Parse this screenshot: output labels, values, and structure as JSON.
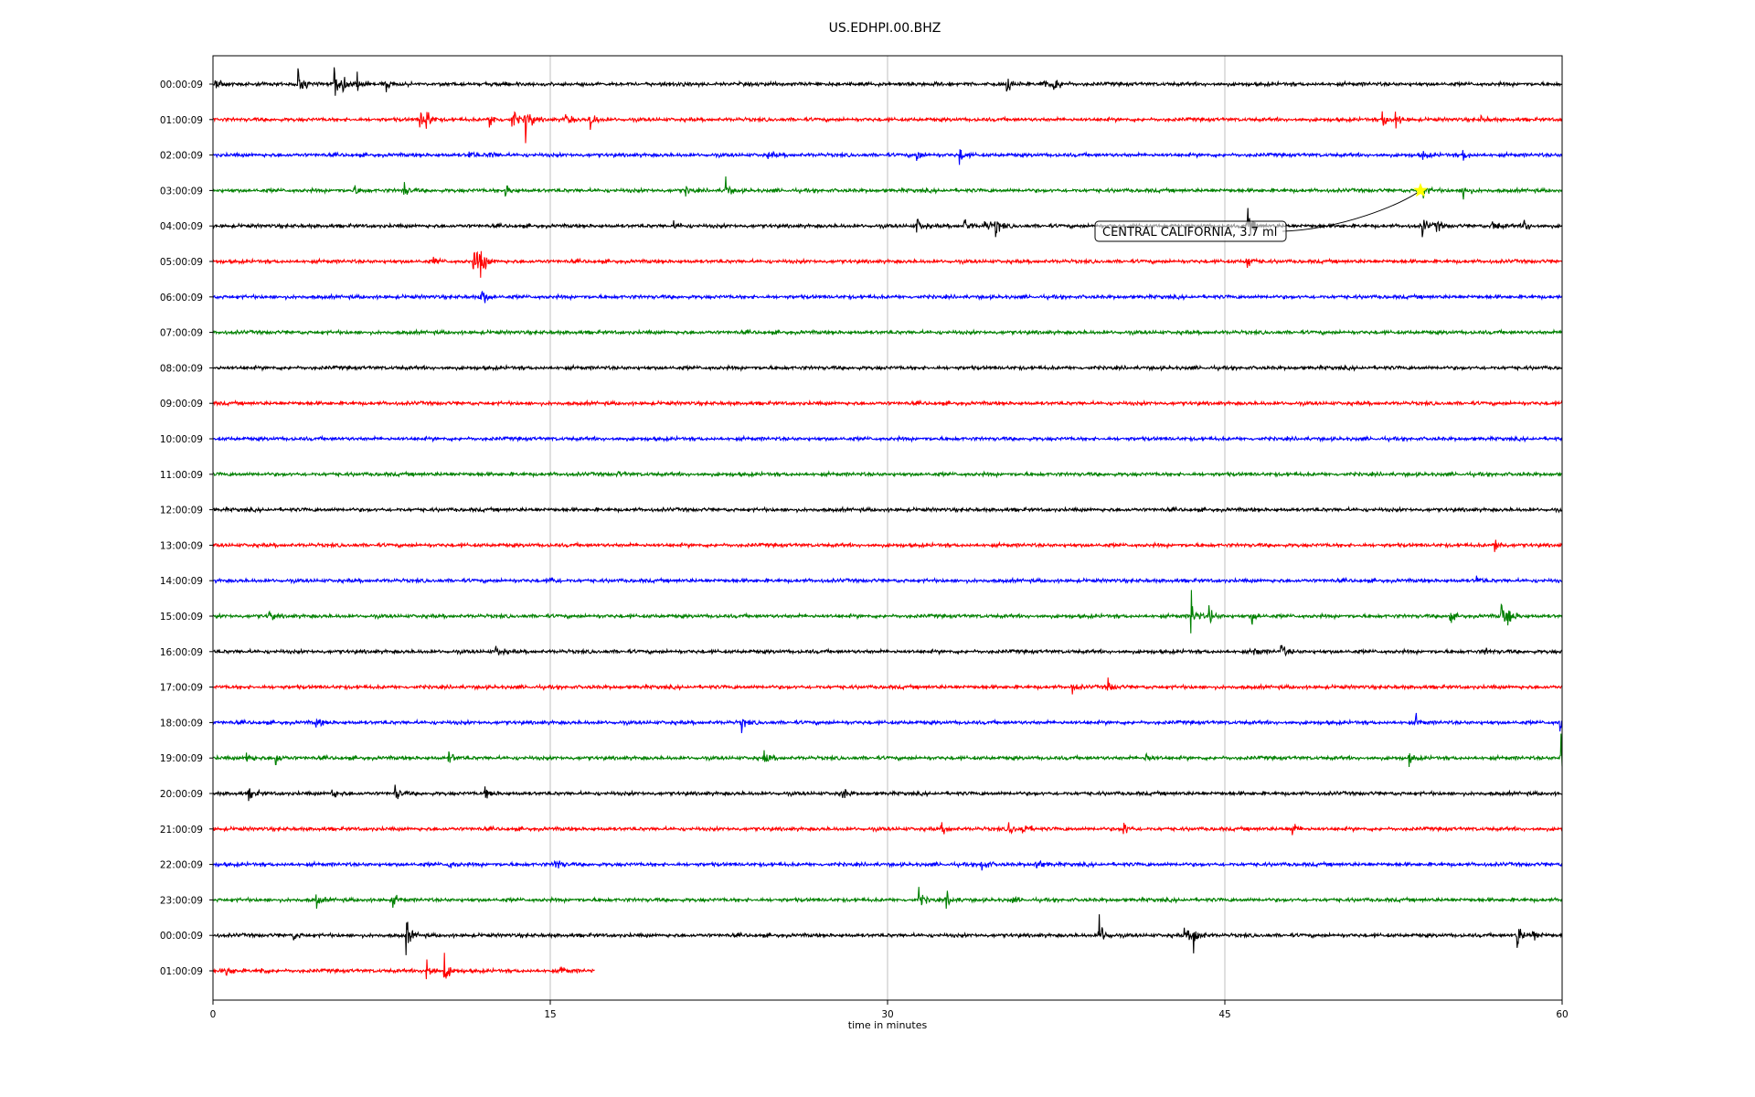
{
  "chart_data": {
    "type": "line",
    "title": "US.EDHPI.00.BHZ",
    "xlabel": "time in minutes",
    "ylabel": "",
    "xlim": [
      0,
      60
    ],
    "x_ticks": [
      "0",
      "15",
      "30",
      "45",
      "60"
    ],
    "x_tick_values": [
      0,
      15,
      30,
      45,
      60
    ],
    "grid": "vertical",
    "trace_colors": [
      "#000000",
      "#ff0000",
      "#0000ff",
      "#008000"
    ],
    "rows": [
      {
        "label": "00:00:09",
        "end": 60,
        "events": [
          [
            0.1,
            0.6
          ],
          [
            3.8,
            0.9
          ],
          [
            5.4,
            1.2
          ],
          [
            5.8,
            0.8
          ],
          [
            6.4,
            0.5
          ],
          [
            7.7,
            0.4
          ],
          [
            35.3,
            0.5
          ],
          [
            36.9,
            0.6
          ],
          [
            37.4,
            1.0
          ]
        ]
      },
      {
        "label": "01:00:09",
        "end": 60,
        "events": [
          [
            9.2,
            0.8
          ],
          [
            9.5,
            0.6
          ],
          [
            12.3,
            0.7
          ],
          [
            13.3,
            0.9
          ],
          [
            13.9,
            1.2
          ],
          [
            15.7,
            0.5
          ],
          [
            16.8,
            0.6
          ],
          [
            52.0,
            0.6
          ],
          [
            52.6,
            0.4
          ],
          [
            56.4,
            0.3
          ]
        ]
      },
      {
        "label": "02:00:09",
        "end": 60,
        "events": [
          [
            11.4,
            0.3
          ],
          [
            12.3,
            0.3
          ],
          [
            24.7,
            0.3
          ],
          [
            31.3,
            0.4
          ],
          [
            33.2,
            0.5
          ],
          [
            53.8,
            0.3
          ],
          [
            55.6,
            0.3
          ]
        ]
      },
      {
        "label": "03:00:09",
        "end": 60,
        "events": [
          [
            6.3,
            0.4
          ],
          [
            8.5,
            0.4
          ],
          [
            13.0,
            0.4
          ],
          [
            21.0,
            0.3
          ],
          [
            22.8,
            0.5
          ],
          [
            53.8,
            0.5
          ],
          [
            55.6,
            0.5
          ]
        ]
      },
      {
        "label": "04:00:09",
        "end": 60,
        "events": [
          [
            20.5,
            0.3
          ],
          [
            31.3,
            0.6
          ],
          [
            33.4,
            0.6
          ],
          [
            34.3,
            0.7
          ],
          [
            34.8,
            0.6
          ],
          [
            46.0,
            1.2
          ],
          [
            53.8,
            0.6
          ],
          [
            54.4,
            0.4
          ],
          [
            56.9,
            0.5
          ],
          [
            58.3,
            0.5
          ]
        ]
      },
      {
        "label": "05:00:09",
        "end": 60,
        "events": [
          [
            9.8,
            0.4
          ],
          [
            11.6,
            1.4
          ],
          [
            11.9,
            1.0
          ],
          [
            46.0,
            0.6
          ]
        ]
      },
      {
        "label": "06:00:09",
        "end": 60,
        "events": [
          [
            11.9,
            0.9
          ]
        ]
      },
      {
        "label": "07:00:09",
        "end": 60,
        "events": []
      },
      {
        "label": "08:00:09",
        "end": 60,
        "events": []
      },
      {
        "label": "09:00:09",
        "end": 60,
        "events": []
      },
      {
        "label": "10:00:09",
        "end": 60,
        "events": []
      },
      {
        "label": "11:00:09",
        "end": 60,
        "events": [
          [
            18.0,
            0.2
          ]
        ]
      },
      {
        "label": "12:00:09",
        "end": 60,
        "events": []
      },
      {
        "label": "13:00:09",
        "end": 60,
        "events": [
          [
            57.0,
            0.6
          ]
        ]
      },
      {
        "label": "14:00:09",
        "end": 60,
        "events": [
          [
            15.0,
            0.3
          ],
          [
            56.2,
            0.3
          ]
        ]
      },
      {
        "label": "15:00:09",
        "end": 60,
        "events": [
          [
            2.5,
            0.3
          ],
          [
            43.5,
            1.0
          ],
          [
            44.3,
            0.6
          ],
          [
            46.2,
            0.4
          ],
          [
            55.0,
            0.4
          ],
          [
            57.3,
            0.7
          ],
          [
            57.6,
            0.6
          ]
        ]
      },
      {
        "label": "16:00:09",
        "end": 60,
        "events": [
          [
            12.6,
            0.5
          ],
          [
            46.3,
            0.4
          ],
          [
            47.5,
            0.6
          ],
          [
            56.5,
            0.3
          ]
        ]
      },
      {
        "label": "17:00:09",
        "end": 60,
        "events": [
          [
            38.2,
            0.3
          ],
          [
            39.8,
            0.5
          ]
        ]
      },
      {
        "label": "18:00:09",
        "end": 60,
        "events": [
          [
            4.6,
            0.4
          ],
          [
            23.5,
            0.4
          ],
          [
            53.5,
            0.3
          ],
          [
            59.9,
            0.5
          ]
        ]
      },
      {
        "label": "19:00:09",
        "end": 60,
        "events": [
          [
            1.5,
            0.4
          ],
          [
            2.8,
            0.4
          ],
          [
            10.5,
            0.5
          ],
          [
            24.5,
            0.5
          ],
          [
            41.5,
            0.5
          ],
          [
            53.2,
            0.4
          ],
          [
            59.95,
            1.5
          ]
        ]
      },
      {
        "label": "20:00:09",
        "end": 60,
        "events": [
          [
            1.6,
            0.6
          ],
          [
            5.3,
            0.4
          ],
          [
            8.1,
            0.6
          ],
          [
            12.1,
            0.4
          ],
          [
            28.0,
            0.4
          ]
        ]
      },
      {
        "label": "21:00:09",
        "end": 60,
        "events": [
          [
            32.4,
            0.6
          ],
          [
            35.4,
            0.5
          ],
          [
            36.0,
            0.6
          ],
          [
            40.5,
            0.5
          ],
          [
            48.0,
            0.4
          ]
        ]
      },
      {
        "label": "22:00:09",
        "end": 60,
        "events": [
          [
            10.5,
            0.3
          ],
          [
            15.2,
            0.7
          ],
          [
            34.2,
            0.5
          ],
          [
            36.6,
            0.6
          ]
        ]
      },
      {
        "label": "23:00:09",
        "end": 60,
        "events": [
          [
            4.6,
            0.4
          ],
          [
            8.0,
            0.4
          ],
          [
            31.4,
            0.6
          ],
          [
            32.6,
            0.7
          ],
          [
            35.5,
            0.3
          ]
        ]
      },
      {
        "label": "00:00:09",
        "end": 60,
        "events": [
          [
            3.6,
            0.3
          ],
          [
            8.6,
            1.0
          ],
          [
            39.4,
            1.2
          ],
          [
            43.2,
            0.6
          ],
          [
            43.6,
            1.0
          ],
          [
            58.0,
            0.9
          ],
          [
            58.7,
            0.5
          ]
        ]
      },
      {
        "label": "01:00:09",
        "end": 17,
        "events": [
          [
            0.6,
            0.5
          ],
          [
            2.1,
            0.3
          ],
          [
            9.5,
            0.7
          ],
          [
            10.3,
            1.0
          ],
          [
            15.5,
            0.3
          ]
        ]
      }
    ],
    "annotations": [
      {
        "text": "CENTRAL CALIFORNIA, 3.7 ml",
        "row": 3,
        "x": 53.7,
        "marker": "star",
        "marker_color": "#ffff00"
      }
    ]
  }
}
